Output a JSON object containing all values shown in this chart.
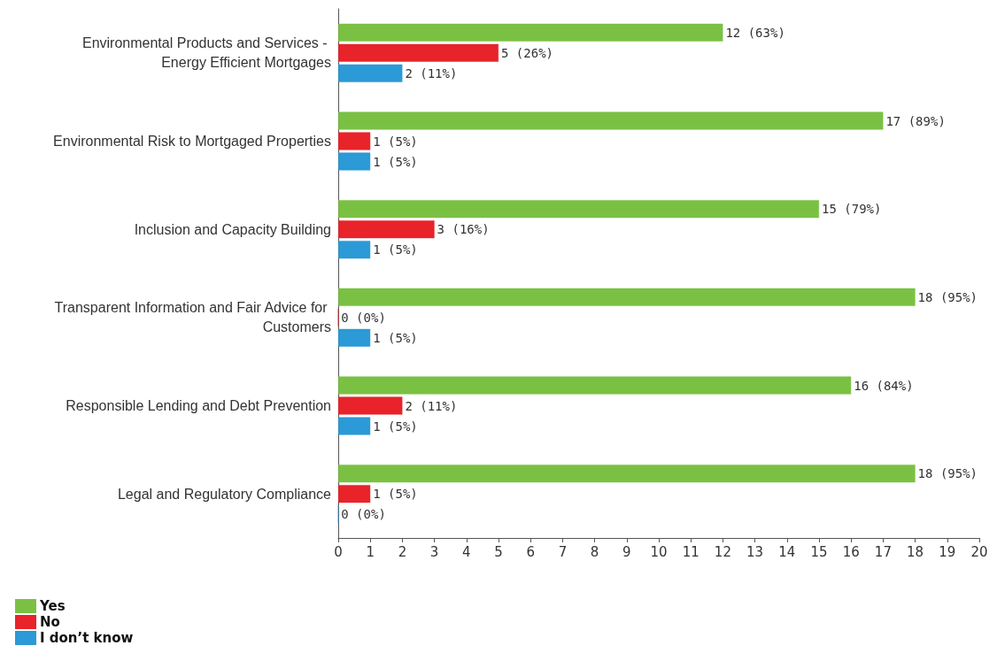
{
  "chart_data": {
    "type": "bar",
    "orientation": "horizontal",
    "categories": [
      "Environmental Products and Services - Energy Efficient Mortgages",
      "Environmental Risk to Mortgaged Properties",
      "Inclusion and Capacity Building",
      "Transparent Information and Fair Advice for Customers",
      "Responsible Lending and Debt Prevention",
      "Legal and Regulatory Compliance"
    ],
    "series": [
      {
        "name": "Yes",
        "color": "#7ac143",
        "values": [
          12,
          17,
          15,
          18,
          16,
          18
        ],
        "value_labels": [
          "12 (63%)",
          "17 (89%)",
          "15 (79%)",
          "18 (95%)",
          "16 (84%)",
          "18 (95%)"
        ]
      },
      {
        "name": "No",
        "color": "#e8232a",
        "values": [
          5,
          1,
          3,
          0,
          2,
          1
        ],
        "value_labels": [
          "5 (26%)",
          "1 (5%)",
          "3 (16%)",
          "0 (0%)",
          "2 (11%)",
          "1 (5%)"
        ]
      },
      {
        "name": "I don’t know",
        "color": "#2b9ad6",
        "values": [
          2,
          1,
          1,
          1,
          1,
          0
        ],
        "value_labels": [
          "2 (11%)",
          "1 (5%)",
          "1 (5%)",
          "1 (5%)",
          "1 (5%)",
          "0 (0%)"
        ]
      }
    ],
    "xlim": [
      0,
      20
    ],
    "xticks": [
      0,
      1,
      2,
      3,
      4,
      5,
      6,
      7,
      8,
      9,
      10,
      11,
      12,
      13,
      14,
      15,
      16,
      17,
      18,
      19,
      20
    ],
    "grid": false,
    "legend": "bottom left"
  }
}
